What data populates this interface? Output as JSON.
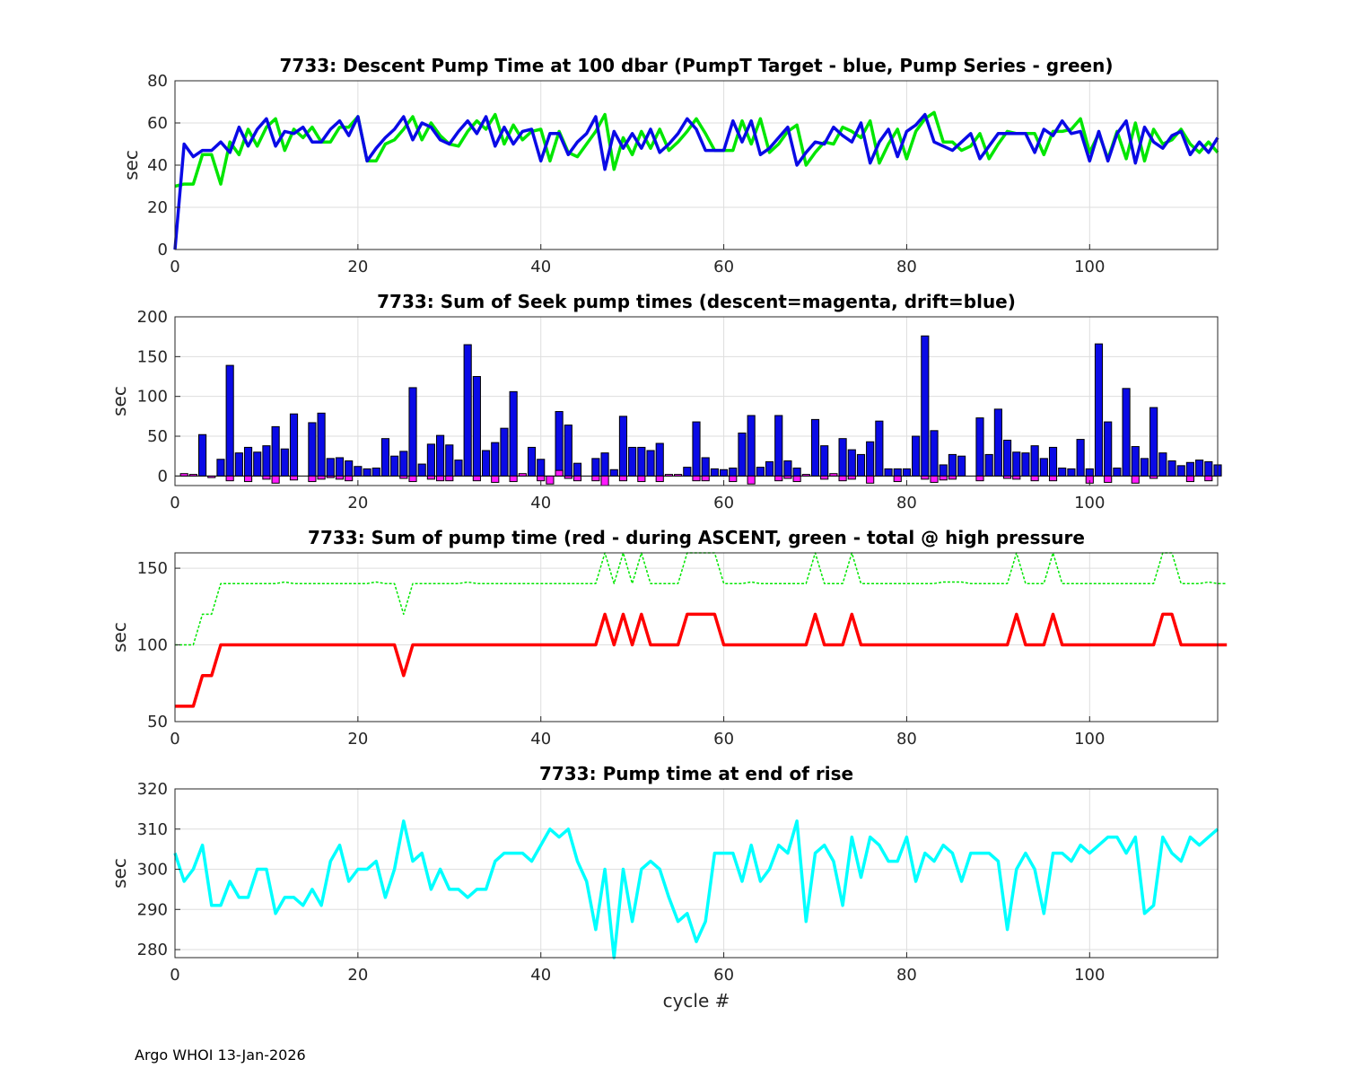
{
  "footer": "Argo WHOI 13-Jan-2026",
  "chart_data": [
    {
      "type": "line",
      "title": "7733: Descent Pump Time at 100 dbar (PumpT Target - blue, Pump Series - green)",
      "xlabel": "",
      "ylabel": "sec",
      "xlim": [
        0,
        114
      ],
      "ylim": [
        0,
        80
      ],
      "xticks": [
        0,
        20,
        40,
        60,
        80,
        100
      ],
      "yticks": [
        0,
        20,
        40,
        60,
        80
      ],
      "grid": true,
      "series": [
        {
          "name": "Pump Series",
          "color": "#00e600",
          "width": 3.5,
          "dash": "",
          "values": [
            30,
            31,
            31,
            45,
            45,
            31,
            51,
            45,
            57,
            49,
            58,
            62,
            47,
            57,
            53,
            58,
            51,
            51,
            58,
            58,
            63,
            42,
            42,
            50,
            52,
            57,
            63,
            52,
            60,
            54,
            50,
            49,
            56,
            61,
            57,
            64,
            50,
            59,
            52,
            56,
            57,
            42,
            56,
            46,
            44,
            50,
            56,
            64,
            38,
            53,
            45,
            56,
            48,
            57,
            47,
            51,
            56,
            62,
            55,
            47,
            47,
            47,
            61,
            50,
            62,
            46,
            50,
            56,
            59,
            40,
            46,
            51,
            50,
            58,
            56,
            53,
            61,
            41,
            50,
            57,
            43,
            56,
            62,
            65,
            51,
            51,
            47,
            49,
            55,
            43,
            50,
            56,
            55,
            55,
            55,
            45,
            56,
            56,
            57,
            62,
            46,
            55,
            43,
            56,
            43,
            60,
            42,
            57,
            50,
            52,
            57,
            50,
            46,
            51,
            46
          ]
        },
        {
          "name": "PumpT Target",
          "color": "#0a0ae6",
          "width": 3.5,
          "dash": "",
          "values": [
            0,
            50,
            44,
            47,
            47,
            51,
            46,
            58,
            49,
            57,
            62,
            49,
            56,
            55,
            58,
            51,
            51,
            57,
            61,
            54,
            63,
            42,
            48,
            53,
            57,
            63,
            52,
            60,
            58,
            52,
            50,
            56,
            61,
            55,
            63,
            49,
            58,
            50,
            56,
            57,
            42,
            55,
            55,
            45,
            51,
            55,
            63,
            38,
            56,
            48,
            55,
            48,
            57,
            46,
            50,
            55,
            62,
            57,
            47,
            47,
            47,
            61,
            51,
            61,
            45,
            48,
            53,
            58,
            40,
            46,
            51,
            50,
            58,
            54,
            51,
            60,
            41,
            51,
            57,
            44,
            56,
            59,
            64,
            51,
            49,
            47,
            51,
            55,
            43,
            49,
            55,
            55,
            55,
            55,
            46,
            57,
            54,
            61,
            55,
            56,
            42,
            56,
            42,
            55,
            61,
            41,
            58,
            51,
            48,
            54,
            56,
            45,
            51,
            46,
            53
          ]
        }
      ]
    },
    {
      "type": "bar",
      "title": "7733: Sum of Seek pump times (descent=magenta, drift=blue)",
      "xlabel": "",
      "ylabel": "sec",
      "xlim": [
        0,
        114
      ],
      "ylim": [
        -12,
        200
      ],
      "xticks": [
        0,
        20,
        40,
        60,
        80,
        100
      ],
      "yticks": [
        0,
        50,
        100,
        150,
        200
      ],
      "grid": true,
      "series": [
        {
          "name": "drift",
          "color": "#0a0ae6",
          "values": [
            0,
            0,
            0,
            52,
            0,
            21,
            139,
            29,
            36,
            30,
            38,
            62,
            34,
            78,
            0,
            67,
            79,
            22,
            23,
            19,
            12,
            9,
            10,
            47,
            25,
            31,
            111,
            15,
            40,
            51,
            39,
            20,
            165,
            125,
            32,
            42,
            60,
            106,
            0,
            36,
            21,
            0,
            81,
            64,
            16,
            0,
            22,
            29,
            8,
            75,
            36,
            36,
            32,
            41,
            0,
            0,
            11,
            68,
            23,
            9,
            8,
            10,
            54,
            76,
            11,
            18,
            76,
            19,
            10,
            0,
            71,
            38,
            0,
            47,
            33,
            27,
            43,
            69,
            9,
            9,
            9,
            50,
            176,
            57,
            14,
            27,
            25,
            0,
            73,
            27,
            84,
            45,
            30,
            29,
            38,
            22,
            36,
            10,
            9,
            46,
            9,
            166,
            68,
            10,
            110,
            37,
            22,
            86,
            29,
            19,
            13,
            17,
            20,
            18,
            14
          ]
        },
        {
          "name": "descent",
          "color": "#ff1aff",
          "values": [
            0,
            3,
            2,
            0,
            -2,
            0,
            -6,
            0,
            -7,
            0,
            -4,
            -9,
            0,
            -5,
            0,
            -7,
            -4,
            -2,
            -4,
            -6,
            0,
            0,
            0,
            0,
            0,
            -3,
            -7,
            0,
            -4,
            -6,
            -6,
            0,
            0,
            -6,
            0,
            -8,
            0,
            -7,
            3,
            0,
            -6,
            -10,
            7,
            -3,
            -6,
            0,
            -6,
            -12,
            0,
            -6,
            0,
            -7,
            0,
            -7,
            2,
            2,
            0,
            -6,
            -6,
            0,
            0,
            -7,
            0,
            -10,
            0,
            0,
            -6,
            -3,
            -7,
            2,
            0,
            -4,
            3,
            -6,
            -4,
            0,
            -9,
            0,
            0,
            -7,
            0,
            0,
            -4,
            -8,
            -5,
            -4,
            0,
            0,
            -6,
            0,
            0,
            -3,
            -4,
            0,
            -6,
            0,
            -6,
            0,
            0,
            0,
            -9,
            0,
            -8,
            0,
            0,
            -9,
            0,
            -3,
            0,
            0,
            0,
            -7,
            0,
            -6,
            0
          ]
        }
      ]
    },
    {
      "type": "line",
      "title": "7733: Sum of pump time (red - during ASCENT, green - total @ high pressure",
      "xlabel": "",
      "ylabel": "sec",
      "xlim": [
        0,
        114
      ],
      "ylim": [
        50,
        160
      ],
      "xticks": [
        0,
        20,
        40,
        60,
        80,
        100
      ],
      "yticks": [
        50,
        100,
        150
      ],
      "grid": true,
      "series": [
        {
          "name": "total @ high pressure",
          "color": "#00e600",
          "width": 1.5,
          "dash": "3,2",
          "values": [
            100,
            100,
            100,
            120,
            120,
            140,
            140,
            140,
            140,
            140,
            140,
            140,
            141,
            140,
            140,
            140,
            140,
            140,
            140,
            140,
            140,
            140,
            141,
            140,
            140,
            120,
            140,
            140,
            140,
            140,
            140,
            140,
            141,
            140,
            140,
            140,
            140,
            140,
            140,
            140,
            140,
            140,
            140,
            140,
            140,
            140,
            140,
            160,
            140,
            160,
            140,
            160,
            140,
            140,
            140,
            140,
            160,
            160,
            160,
            160,
            140,
            140,
            140,
            141,
            140,
            140,
            140,
            140,
            140,
            140,
            160,
            140,
            140,
            140,
            160,
            140,
            140,
            140,
            140,
            140,
            140,
            140,
            140,
            140,
            141,
            141,
            141,
            140,
            140,
            140,
            140,
            140,
            160,
            140,
            140,
            140,
            160,
            140,
            140,
            140,
            140,
            140,
            140,
            140,
            140,
            140,
            140,
            140,
            160,
            160,
            140,
            140,
            140,
            141,
            140,
            140
          ]
        },
        {
          "name": "during ASCENT",
          "color": "#ff0000",
          "width": 3.5,
          "dash": "",
          "values": [
            60,
            60,
            60,
            80,
            80,
            100,
            100,
            100,
            100,
            100,
            100,
            100,
            100,
            100,
            100,
            100,
            100,
            100,
            100,
            100,
            100,
            100,
            100,
            100,
            100,
            80,
            100,
            100,
            100,
            100,
            100,
            100,
            100,
            100,
            100,
            100,
            100,
            100,
            100,
            100,
            100,
            100,
            100,
            100,
            100,
            100,
            100,
            120,
            100,
            120,
            100,
            120,
            100,
            100,
            100,
            100,
            120,
            120,
            120,
            120,
            100,
            100,
            100,
            100,
            100,
            100,
            100,
            100,
            100,
            100,
            120,
            100,
            100,
            100,
            120,
            100,
            100,
            100,
            100,
            100,
            100,
            100,
            100,
            100,
            100,
            100,
            100,
            100,
            100,
            100,
            100,
            100,
            120,
            100,
            100,
            100,
            120,
            100,
            100,
            100,
            100,
            100,
            100,
            100,
            100,
            100,
            100,
            100,
            120,
            120,
            100,
            100,
            100,
            100,
            100,
            100
          ]
        }
      ]
    },
    {
      "type": "line",
      "title": "7733: Pump time at end of rise",
      "xlabel": "cycle #",
      "ylabel": "sec",
      "xlim": [
        0,
        114
      ],
      "ylim": [
        278,
        320
      ],
      "xticks": [
        0,
        20,
        40,
        60,
        80,
        100
      ],
      "yticks": [
        280,
        290,
        300,
        310,
        320
      ],
      "grid": true,
      "series": [
        {
          "name": "end of rise",
          "color": "#00ffff",
          "width": 3.5,
          "dash": "",
          "values": [
            304,
            297,
            300,
            306,
            291,
            291,
            297,
            293,
            293,
            300,
            300,
            289,
            293,
            293,
            291,
            295,
            291,
            302,
            306,
            297,
            300,
            300,
            302,
            293,
            300,
            312,
            302,
            304,
            295,
            300,
            295,
            295,
            293,
            295,
            295,
            302,
            304,
            304,
            304,
            302,
            306,
            310,
            308,
            310,
            302,
            297,
            285,
            300,
            278,
            300,
            287,
            300,
            302,
            300,
            293,
            287,
            289,
            282,
            287,
            304,
            304,
            304,
            297,
            306,
            297,
            300,
            306,
            304,
            312,
            287,
            304,
            306,
            302,
            291,
            308,
            298,
            308,
            306,
            302,
            302,
            308,
            297,
            304,
            302,
            306,
            304,
            297,
            304,
            304,
            304,
            302,
            285,
            300,
            304,
            300,
            289,
            304,
            304,
            302,
            306,
            304,
            306,
            308,
            308,
            304,
            308,
            289,
            291,
            308,
            304,
            302,
            308,
            306,
            308,
            310
          ]
        }
      ]
    }
  ]
}
